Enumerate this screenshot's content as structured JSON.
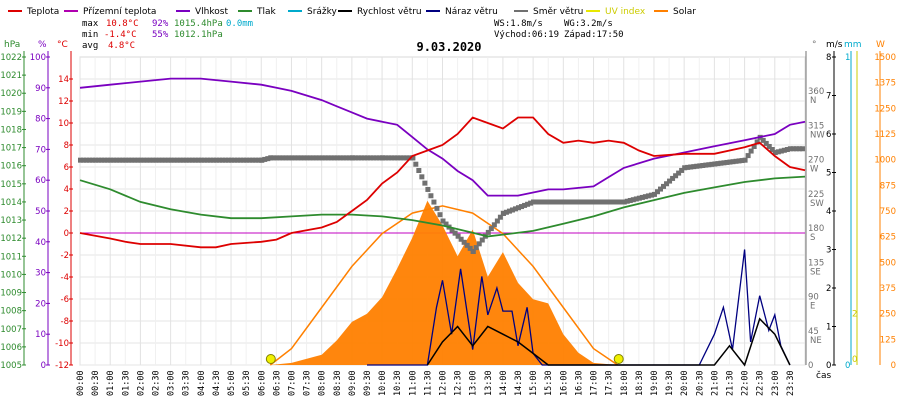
{
  "legend": [
    {
      "key": "teplota",
      "label": "Teplota",
      "color": "#dd0000"
    },
    {
      "key": "prizemni",
      "label": "Přízemní teplota",
      "color": "#b000b0"
    },
    {
      "key": "vlhkost",
      "label": "Vlhkost",
      "color": "#7a00c0"
    },
    {
      "key": "tlak",
      "label": "Tlak",
      "color": "#2e8b2e"
    },
    {
      "key": "srazky",
      "label": "Srážky",
      "color": "#00aacc"
    },
    {
      "key": "rychlost",
      "label": "Rychlost větru",
      "color": "#000000"
    },
    {
      "key": "naraz",
      "label": "Náraz větru",
      "color": "#000080"
    },
    {
      "key": "smer",
      "label": "Směr větru",
      "color": "#707070"
    },
    {
      "key": "uv",
      "label": "UV index",
      "color": "#e8e800"
    },
    {
      "key": "solar",
      "label": "Solar",
      "color": "#ff8000"
    }
  ],
  "stats": {
    "max_label": "max",
    "max_temp": "10.8°C",
    "max_hum": "92%",
    "max_press": "1015.4hPa",
    "max_rain": "0.0mm",
    "min_label": "min",
    "min_temp": "-1.4°C",
    "min_hum": "55%",
    "min_press": "1012.1hPa",
    "avg_label": "avg",
    "avg_temp": "4.8°C",
    "ws": "WS:1.8m/s",
    "wg": "WG:3.2m/s",
    "sunrise": "Východ:06:19",
    "sunset": "Západ:17:50"
  },
  "date_title": "9.03.2020",
  "axis_units": {
    "hpa": "hPa",
    "pct": "%",
    "degc": "°C",
    "deg": "°",
    "ms": "m/s",
    "mm": "mm",
    "w": "W",
    "cas": "čas"
  },
  "chart_data": {
    "type": "line",
    "title": "9.03.2020",
    "x_labels": [
      "00:00",
      "00:30",
      "01:00",
      "01:30",
      "02:00",
      "02:30",
      "03:00",
      "03:30",
      "04:00",
      "04:30",
      "05:00",
      "05:30",
      "06:00",
      "06:30",
      "07:00",
      "07:30",
      "08:00",
      "08:30",
      "09:00",
      "09:30",
      "10:00",
      "10:30",
      "11:00",
      "11:30",
      "12:00",
      "12:30",
      "13:00",
      "13:30",
      "14:00",
      "14:30",
      "15:00",
      "15:30",
      "16:00",
      "16:30",
      "17:00",
      "17:30",
      "18:00",
      "18:30",
      "19:00",
      "19:30",
      "20:00",
      "20:30",
      "21:00",
      "21:30",
      "22:00",
      "22:30",
      "23:00",
      "23:30"
    ],
    "axes": {
      "pressure_hpa": {
        "min": 1005,
        "max": 1022,
        "ticks": [
          1005,
          1006,
          1007,
          1008,
          1009,
          1010,
          1011,
          1012,
          1013,
          1014,
          1015,
          1016,
          1017,
          1018,
          1019,
          1020,
          1021,
          1022
        ]
      },
      "humidity_pct": {
        "min": 0,
        "max": 100,
        "ticks": [
          0,
          10,
          20,
          30,
          40,
          50,
          60,
          70,
          80,
          90,
          100
        ]
      },
      "temperature_c": {
        "min": -12,
        "max": 16,
        "ticks": [
          -12,
          -10,
          -8,
          -6,
          -4,
          -2,
          0,
          2,
          4,
          6,
          8,
          10,
          12,
          14
        ]
      },
      "direction": {
        "ticks": [
          {
            "deg": "360",
            "dir": "N"
          },
          {
            "deg": "315",
            "dir": "NW"
          },
          {
            "deg": "270",
            "dir": "W"
          },
          {
            "deg": "225",
            "dir": "SW"
          },
          {
            "deg": "180",
            "dir": "S"
          },
          {
            "deg": "135",
            "dir": "SE"
          },
          {
            "deg": "90",
            "dir": "E"
          },
          {
            "deg": "45",
            "dir": "NE"
          },
          {
            "deg": "0",
            "dir": ""
          }
        ]
      },
      "wind_ms": {
        "min": 0,
        "max": 8,
        "ticks": [
          0,
          1,
          2,
          3,
          4,
          5,
          6,
          7,
          8
        ]
      },
      "rain_mm": {
        "ticks": [
          0,
          1
        ]
      },
      "uv": {
        "ticks": [
          0,
          2
        ]
      },
      "solar_w": {
        "min": 0,
        "max": 1500,
        "ticks": [
          0,
          125,
          250,
          375,
          500,
          625,
          750,
          875,
          1000,
          1125,
          1250,
          1375,
          1500
        ]
      }
    },
    "series": [
      {
        "name": "Teplota",
        "unit": "°C",
        "x": [
          0,
          1,
          1.5,
          2,
          3,
          4,
          4.5,
          5,
          6,
          6.5,
          7,
          8,
          8.5,
          9,
          9.5,
          10,
          10.5,
          11,
          11.5,
          12,
          12.5,
          13,
          13.5,
          14,
          14.5,
          15,
          15.5,
          16,
          16.5,
          17,
          17.5,
          18,
          18.5,
          19,
          20,
          21,
          22,
          22.5,
          23,
          23.5,
          24
        ],
        "y": [
          0,
          -0.5,
          -0.8,
          -1,
          -1,
          -1.3,
          -1.3,
          -1,
          -0.8,
          -0.6,
          0,
          0.5,
          1,
          2,
          3,
          4.5,
          5.5,
          7,
          7.5,
          8,
          9,
          10.5,
          10,
          9.5,
          10.5,
          10.5,
          9,
          8.2,
          8.4,
          8.2,
          8.4,
          8.2,
          7.5,
          7,
          7.2,
          7.2,
          7.8,
          8.2,
          7,
          6,
          5.7
        ]
      },
      {
        "name": "Vlhkost",
        "unit": "%",
        "x": [
          0,
          1,
          2,
          3,
          4,
          5,
          6,
          6.5,
          7,
          8,
          8.5,
          9,
          9.5,
          10,
          10.5,
          11,
          11.5,
          12,
          12.5,
          13,
          13.5,
          14,
          14.5,
          15,
          15.5,
          16,
          17,
          17.5,
          18,
          19,
          20,
          21,
          22,
          23,
          23.5,
          24
        ],
        "y": [
          90,
          91,
          92,
          93,
          93,
          92,
          91,
          90,
          89,
          86,
          84,
          82,
          80,
          79,
          78,
          74,
          70,
          67,
          63,
          60,
          55,
          55,
          55,
          56,
          57,
          57,
          58,
          61,
          64,
          67,
          69,
          71,
          73,
          75,
          78,
          79
        ]
      },
      {
        "name": "Tlak",
        "unit": "hPa",
        "x": [
          0,
          1,
          2,
          3,
          4,
          5,
          6,
          7,
          8,
          9,
          10,
          11,
          12,
          13,
          13.5,
          14,
          15,
          16,
          17,
          18,
          19,
          20,
          21,
          22,
          23,
          24
        ],
        "y": [
          1015.2,
          1014.7,
          1014.0,
          1013.6,
          1013.3,
          1013.1,
          1013.1,
          1013.2,
          1013.3,
          1013.3,
          1013.2,
          1013.0,
          1012.7,
          1012.3,
          1012.1,
          1012.2,
          1012.4,
          1012.8,
          1013.2,
          1013.7,
          1014.1,
          1014.5,
          1014.8,
          1015.1,
          1015.3,
          1015.4
        ]
      },
      {
        "name": "Směr větru",
        "unit": "°",
        "x": [
          0,
          3,
          6,
          6.3,
          9,
          10,
          11,
          12,
          13,
          14,
          15,
          16,
          17,
          18,
          19,
          20,
          21,
          22,
          22.5,
          23,
          23.5,
          24
        ],
        "y": [
          270,
          270,
          270,
          273,
          273,
          273,
          273,
          190,
          150,
          200,
          215,
          215,
          215,
          215,
          225,
          260,
          265,
          270,
          300,
          280,
          285,
          285
        ]
      },
      {
        "name": "Náraz větru",
        "unit": "m/s",
        "x": [
          9.5,
          10,
          10.5,
          11,
          11.5,
          11.8,
          12,
          12.3,
          12.6,
          13,
          13.3,
          13.5,
          13.8,
          14,
          14.3,
          14.5,
          14.8,
          15,
          15.3,
          16,
          20.5,
          21,
          21.3,
          21.6,
          22,
          22.2,
          22.5,
          22.8,
          23,
          23.2,
          23.5
        ],
        "y": [
          0,
          0,
          0,
          0,
          0,
          1.5,
          2.2,
          0.8,
          2.5,
          0.4,
          2.3,
          1.3,
          2.0,
          1.4,
          1.4,
          0.5,
          1.5,
          0.3,
          0,
          0,
          0,
          0.8,
          1.5,
          0.4,
          3.0,
          0.6,
          1.8,
          0.9,
          1.3,
          0.5,
          0
        ]
      },
      {
        "name": "Rychlost větru",
        "unit": "m/s",
        "x": [
          11.5,
          12,
          12.5,
          13,
          13.5,
          14,
          14.5,
          15,
          15.5,
          21,
          21.5,
          22,
          22.5,
          23,
          23.5
        ],
        "y": [
          0,
          0.6,
          1.0,
          0.5,
          1.0,
          0.8,
          0.6,
          0.3,
          0,
          0,
          0.5,
          0,
          1.2,
          0.8,
          0
        ]
      },
      {
        "name": "Solar",
        "unit": "W",
        "x": [
          6.3,
          7,
          8,
          8.5,
          9,
          9.5,
          10,
          10.5,
          11,
          11.5,
          12,
          12.5,
          13,
          13.5,
          14,
          14.5,
          15,
          15.5,
          16,
          16.5,
          17,
          17.8
        ],
        "y": [
          0,
          10,
          50,
          120,
          210,
          250,
          330,
          470,
          620,
          800,
          680,
          530,
          660,
          430,
          550,
          400,
          320,
          300,
          150,
          60,
          10,
          0
        ]
      },
      {
        "name": "Solar clear sky",
        "unit": "W",
        "x": [
          6.3,
          7,
          8,
          9,
          10,
          11,
          12,
          13,
          14,
          15,
          16,
          17,
          17.8
        ],
        "y": [
          0,
          80,
          280,
          480,
          640,
          740,
          775,
          740,
          640,
          480,
          280,
          80,
          0
        ]
      }
    ],
    "sunrise_time": "06:19",
    "sunset_time": "17:50",
    "grid": "on",
    "legend_position": "top"
  }
}
